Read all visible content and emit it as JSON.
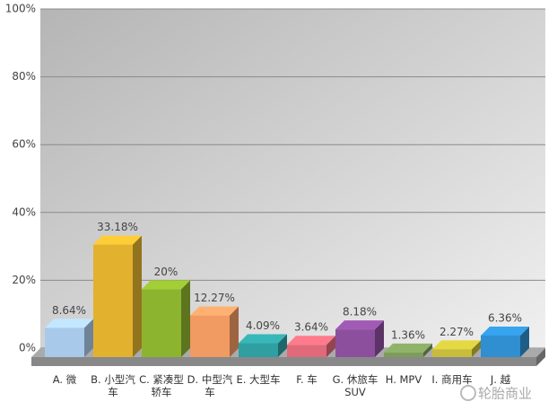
{
  "chart_data": {
    "type": "bar3d",
    "categories": [
      "A. 微",
      "B. 小型汽车",
      "C. 紧凑型轿车",
      "D. 中型汽车",
      "E. 大型车",
      "F. 车",
      "G. 休旅车SUV",
      "H. MPV",
      "I. 商用车",
      "J. 越"
    ],
    "values": [
      8.64,
      33.18,
      20,
      12.27,
      4.09,
      3.64,
      8.18,
      1.36,
      2.27,
      6.36
    ],
    "value_labels": [
      "8.64%",
      "33.18%",
      "20%",
      "12.27%",
      "4.09%",
      "3.64%",
      "8.18%",
      "1.36%",
      "2.27%",
      "6.36%"
    ],
    "colors": [
      "#a9c9ea",
      "#e2b22e",
      "#8db42e",
      "#f19a62",
      "#2f9fa2",
      "#e06a7a",
      "#8c4f9e",
      "#7d9c5c",
      "#c7bd3a",
      "#2f8fd0"
    ],
    "ylim": [
      0,
      100
    ],
    "yticks": [
      {
        "value": 0,
        "label": "0%"
      },
      {
        "value": 20,
        "label": "20%"
      },
      {
        "value": 40,
        "label": "40%"
      },
      {
        "value": 60,
        "label": "60%"
      },
      {
        "value": 80,
        "label": "80%"
      },
      {
        "value": 100,
        "label": "100%"
      }
    ],
    "grid": true,
    "watermark": "轮胎商业"
  }
}
